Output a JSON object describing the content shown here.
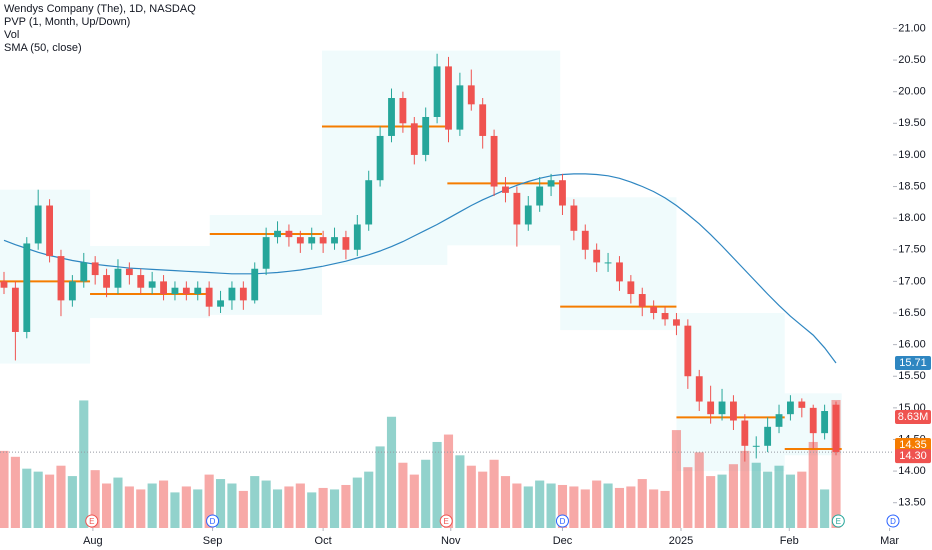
{
  "chart_data": {
    "type": "candlestick",
    "legend": [
      "Wendys Company (The), 1D, NASDAQ",
      "PVP (1, Month, Up/Down)",
      "Vol",
      "SMA (50, close)"
    ],
    "ylim": [
      13.1,
      21.45
    ],
    "yticks": [
      {
        "value": 13.5,
        "label": "13.50"
      },
      {
        "value": 14,
        "label": "14.00"
      },
      {
        "value": 14.5,
        "label": "14.50"
      },
      {
        "value": 15,
        "label": "15.00"
      },
      {
        "value": 15.5,
        "label": "15.50"
      },
      {
        "value": 16,
        "label": "16.00"
      },
      {
        "value": 16.5,
        "label": "16.50"
      },
      {
        "value": 17,
        "label": "17.00"
      },
      {
        "value": 17.5,
        "label": "17.50"
      },
      {
        "value": 18,
        "label": "18.00"
      },
      {
        "value": 18.5,
        "label": "18.50"
      },
      {
        "value": 19,
        "label": "19.00"
      },
      {
        "value": 19.5,
        "label": "19.50"
      },
      {
        "value": 20,
        "label": "20.00"
      },
      {
        "value": 20.5,
        "label": "20.50"
      },
      {
        "value": 21,
        "label": "21.00"
      }
    ],
    "xlim": [
      -0.35,
      78.0
    ],
    "xticks": [
      {
        "value": 7.8,
        "label": "Aug"
      },
      {
        "value": 18.3,
        "label": "Sep"
      },
      {
        "value": 28,
        "label": "Oct"
      },
      {
        "value": 39.2,
        "label": "Nov"
      },
      {
        "value": 49,
        "label": "Dec"
      },
      {
        "value": 59.4,
        "label": "2025"
      },
      {
        "value": 68.9,
        "label": "Feb"
      },
      {
        "value": 77.7,
        "label": "Mar"
      }
    ],
    "up_color": "#26a69a",
    "down_color": "#ef5350",
    "sma_color": "#2e86c1",
    "poc_color": "#f57c00",
    "ohlc": [
      [
        17.0,
        17.15,
        16.8,
        16.9
      ],
      [
        16.9,
        17.0,
        15.75,
        16.2
      ],
      [
        16.2,
        17.7,
        16.1,
        17.6
      ],
      [
        17.6,
        18.45,
        17.5,
        18.2
      ],
      [
        18.2,
        18.3,
        17.3,
        17.4
      ],
      [
        17.4,
        17.5,
        16.45,
        16.7
      ],
      [
        16.7,
        17.1,
        16.6,
        17.0
      ],
      [
        17.0,
        17.45,
        16.9,
        17.3
      ],
      [
        17.3,
        17.4,
        16.95,
        17.1
      ],
      [
        17.1,
        17.2,
        16.75,
        16.9
      ],
      [
        16.9,
        17.35,
        16.8,
        17.2
      ],
      [
        17.2,
        17.3,
        16.95,
        17.1
      ],
      [
        17.1,
        17.2,
        16.8,
        16.9
      ],
      [
        16.9,
        17.15,
        16.8,
        17.0
      ],
      [
        17.0,
        17.1,
        16.7,
        16.8
      ],
      [
        16.8,
        17.0,
        16.7,
        16.9
      ],
      [
        16.9,
        17.0,
        16.7,
        16.8
      ],
      [
        16.8,
        17.0,
        16.7,
        16.9
      ],
      [
        16.9,
        17.0,
        16.45,
        16.6
      ],
      [
        16.6,
        16.85,
        16.5,
        16.7
      ],
      [
        16.7,
        17.0,
        16.55,
        16.9
      ],
      [
        16.9,
        17.0,
        16.55,
        16.7
      ],
      [
        16.7,
        17.3,
        16.65,
        17.2
      ],
      [
        17.2,
        17.85,
        17.1,
        17.7
      ],
      [
        17.7,
        17.95,
        17.6,
        17.8
      ],
      [
        17.8,
        17.9,
        17.55,
        17.7
      ],
      [
        17.7,
        17.8,
        17.45,
        17.6
      ],
      [
        17.6,
        17.85,
        17.5,
        17.7
      ],
      [
        17.7,
        17.8,
        17.45,
        17.6
      ],
      [
        17.6,
        17.85,
        17.5,
        17.7
      ],
      [
        17.7,
        17.8,
        17.35,
        17.5
      ],
      [
        17.5,
        18.05,
        17.4,
        17.9
      ],
      [
        17.9,
        18.75,
        17.8,
        18.6
      ],
      [
        18.6,
        19.45,
        18.5,
        19.3
      ],
      [
        19.3,
        20.05,
        19.2,
        19.9
      ],
      [
        19.9,
        20.0,
        19.35,
        19.5
      ],
      [
        19.5,
        19.6,
        18.85,
        19.0
      ],
      [
        19.0,
        19.75,
        18.9,
        19.6
      ],
      [
        19.6,
        20.6,
        19.5,
        20.4
      ],
      [
        20.4,
        20.55,
        19.2,
        19.4
      ],
      [
        19.4,
        20.3,
        19.3,
        20.1
      ],
      [
        20.1,
        20.35,
        19.7,
        19.8
      ],
      [
        19.8,
        19.9,
        19.1,
        19.3
      ],
      [
        19.3,
        19.4,
        18.35,
        18.5
      ],
      [
        18.5,
        18.65,
        18.25,
        18.4
      ],
      [
        18.4,
        18.5,
        17.55,
        17.9
      ],
      [
        17.9,
        18.35,
        17.8,
        18.2
      ],
      [
        18.2,
        18.65,
        18.1,
        18.5
      ],
      [
        18.5,
        18.7,
        18.35,
        18.6
      ],
      [
        18.6,
        18.7,
        18.05,
        18.2
      ],
      [
        18.2,
        18.3,
        17.65,
        17.8
      ],
      [
        17.8,
        17.9,
        17.35,
        17.5
      ],
      [
        17.5,
        17.6,
        17.15,
        17.3
      ],
      [
        17.3,
        17.45,
        17.15,
        17.3
      ],
      [
        17.3,
        17.4,
        16.85,
        17.0
      ],
      [
        17.0,
        17.1,
        16.65,
        16.8
      ],
      [
        16.8,
        16.9,
        16.45,
        16.6
      ],
      [
        16.6,
        16.7,
        16.4,
        16.5
      ],
      [
        16.5,
        16.6,
        16.3,
        16.4
      ],
      [
        16.4,
        16.5,
        16.15,
        16.3
      ],
      [
        16.3,
        16.4,
        15.3,
        15.5
      ],
      [
        15.5,
        15.6,
        14.95,
        15.1
      ],
      [
        15.1,
        15.35,
        14.75,
        14.9
      ],
      [
        14.9,
        15.3,
        14.8,
        15.1
      ],
      [
        15.1,
        15.2,
        14.65,
        14.8
      ],
      [
        14.8,
        14.9,
        14.15,
        14.4
      ],
      [
        14.4,
        14.55,
        14.2,
        14.4
      ],
      [
        14.4,
        14.85,
        14.3,
        14.7
      ],
      [
        14.7,
        15.05,
        14.6,
        14.9
      ],
      [
        14.9,
        15.2,
        14.8,
        15.1
      ],
      [
        15.1,
        15.15,
        14.85,
        15.0
      ],
      [
        15.0,
        15.05,
        14.35,
        14.6
      ],
      [
        14.6,
        15.05,
        14.5,
        14.95
      ],
      [
        15.05,
        15.1,
        14.25,
        14.3
      ]
    ],
    "volume": [
      5.2,
      4.8,
      4.0,
      3.8,
      3.6,
      4.2,
      3.5,
      8.6,
      3.9,
      3.0,
      3.4,
      2.8,
      2.6,
      3.0,
      3.2,
      2.4,
      2.8,
      2.6,
      3.6,
      3.3,
      3.0,
      2.5,
      3.5,
      3.2,
      2.6,
      2.8,
      3.0,
      2.4,
      2.7,
      2.6,
      2.9,
      3.4,
      3.8,
      5.5,
      7.5,
      4.4,
      3.6,
      4.6,
      5.8,
      6.3,
      4.9,
      4.2,
      3.8,
      4.6,
      3.5,
      3.0,
      2.8,
      3.2,
      3.0,
      2.9,
      2.8,
      2.6,
      3.2,
      3.0,
      2.7,
      2.8,
      3.3,
      2.6,
      2.5,
      6.6,
      4.1,
      5.1,
      3.5,
      3.6,
      4.3,
      5.2,
      4.4,
      3.8,
      4.2,
      3.6,
      3.8,
      5.8,
      2.6,
      8.63
    ],
    "volume_lim": [
      0,
      30
    ],
    "sma": [
      17.65,
      17.58,
      17.52,
      17.46,
      17.41,
      17.37,
      17.33,
      17.3,
      17.27,
      17.25,
      17.23,
      17.21,
      17.2,
      17.19,
      17.18,
      17.17,
      17.16,
      17.15,
      17.14,
      17.13,
      17.12,
      17.12,
      17.12,
      17.13,
      17.14,
      17.16,
      17.18,
      17.21,
      17.24,
      17.28,
      17.32,
      17.37,
      17.42,
      17.48,
      17.55,
      17.63,
      17.72,
      17.81,
      17.9,
      18.0,
      18.1,
      18.2,
      18.29,
      18.37,
      18.45,
      18.52,
      18.58,
      18.63,
      18.67,
      18.69,
      18.7,
      18.7,
      18.69,
      18.67,
      18.63,
      18.57,
      18.5,
      18.42,
      18.32,
      18.2,
      18.06,
      17.91,
      17.74,
      17.56,
      17.37,
      17.18,
      16.99,
      16.8,
      16.62,
      16.45,
      16.3,
      16.15,
      15.95,
      15.71
    ],
    "profiles": [
      {
        "start": -0.35,
        "end": 7.55,
        "low": 15.7,
        "high": 18.45,
        "poc": 17.0
      },
      {
        "start": 7.55,
        "end": 18.05,
        "low": 16.42,
        "high": 17.56,
        "poc": 16.8
      },
      {
        "start": 18.05,
        "end": 27.9,
        "low": 16.47,
        "high": 18.05,
        "poc": 17.75
      },
      {
        "start": 27.9,
        "end": 38.9,
        "low": 17.26,
        "high": 20.65,
        "poc": 19.45
      },
      {
        "start": 38.9,
        "end": 48.8,
        "low": 17.57,
        "high": 20.65,
        "poc": 18.55
      },
      {
        "start": 48.8,
        "end": 59.0,
        "low": 16.23,
        "high": 18.33,
        "poc": 16.6
      },
      {
        "start": 59.0,
        "end": 68.5,
        "low": 14.0,
        "high": 16.5,
        "poc": 14.85
      },
      {
        "start": 68.5,
        "end": 73.5,
        "low": 14.25,
        "high": 15.23,
        "poc": 14.35
      }
    ],
    "last_labels": {
      "sma": "15.71",
      "volume": "8.63M",
      "poc": "14.35",
      "close": "14.30"
    },
    "events": [
      {
        "at": 7.7,
        "label": "E",
        "color": "#ef5350"
      },
      {
        "at": 18.3,
        "label": "D",
        "color": "#2962ff"
      },
      {
        "at": 38.8,
        "label": "E",
        "color": "#ef5350"
      },
      {
        "at": 49,
        "label": "D",
        "color": "#2962ff"
      },
      {
        "at": 73.2,
        "label": "E",
        "color": "#26a69a"
      },
      {
        "at": 78,
        "label": "D",
        "color": "#2962ff"
      }
    ]
  }
}
